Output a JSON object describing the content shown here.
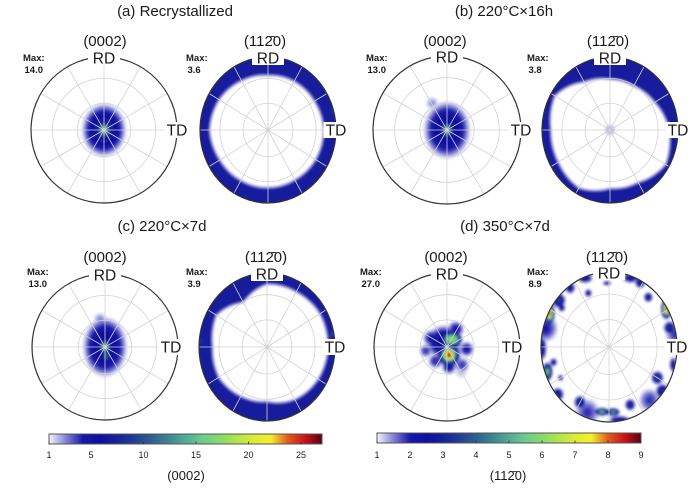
{
  "chart_data": {
    "type": "heatmap",
    "max_label": "Max:",
    "axis_labels": {
      "rd": "RD",
      "td": "TD"
    },
    "grid": {
      "tilt_rings_deg": [
        30,
        60
      ],
      "azimuth_step_deg": 30
    },
    "colormap": [
      "#f5f5fc",
      "#8282d8",
      "#1616a8",
      "#1010a0",
      "#16229a",
      "#223e92",
      "#2f5f8f",
      "#3d8592",
      "#52ab95",
      "#6ccc8c",
      "#86da6c",
      "#b0e44a",
      "#dcec34",
      "#f2ee2e",
      "#e25a1c",
      "#c8141a",
      "#5a0010"
    ],
    "colorbars": [
      {
        "label": "(0002)",
        "range": [
          1,
          27
        ],
        "ticks": [
          1,
          5,
          10,
          15,
          20,
          25
        ]
      },
      {
        "label": "(112̄0)",
        "range": [
          1,
          9
        ],
        "ticks": [
          1,
          2,
          3,
          4,
          5,
          6,
          7,
          8,
          9
        ]
      }
    ],
    "panels": [
      {
        "title": "(a) Recrystallized",
        "pole_figures": [
          {
            "plane": "(0002)",
            "max": "14.0",
            "colorbar": 0,
            "components": [
              {
                "az": 0,
                "tilt": 0,
                "intensity": 7,
                "hw_deg": [
                  31,
                  26
                ],
                "p": 4
              },
              {
                "az": 0,
                "tilt": 0,
                "intensity": 14,
                "hw_deg": [
                  13,
                  11
                ],
                "p": 3
              }
            ]
          },
          {
            "plane": "(112̄0)",
            "max": "3.6",
            "colorbar": 1,
            "ring": {
              "intensity": 2.9,
              "inner_tilt_deg": [
                62,
                64,
                66,
                69,
                68,
                66,
                66,
                67,
                69,
                73,
                70,
                65
              ]
            },
            "components": [
              {
                "az": 75,
                "tilt": 88,
                "intensity": 3.6,
                "hw_deg": [
                  12,
                  6
                ]
              },
              {
                "az": 200,
                "tilt": 86,
                "intensity": 3.3,
                "hw_deg": [
                  8,
                  12
                ]
              }
            ]
          }
        ]
      },
      {
        "title": "(b) 220°C×16h",
        "pole_figures": [
          {
            "plane": "(0002)",
            "max": "13.0",
            "colorbar": 0,
            "components": [
              {
                "az": 0,
                "tilt": 0,
                "intensity": 6.5,
                "hw_deg": [
                  33,
                  27
                ],
                "p": 4
              },
              {
                "az": 0,
                "tilt": 0,
                "intensity": 13,
                "hw_deg": [
                  12,
                  10
                ],
                "p": 3
              },
              {
                "az": 331,
                "tilt": 34,
                "intensity": 2.8,
                "hw_deg": [
                  8,
                  8
                ]
              }
            ]
          },
          {
            "plane": "(112̄0)",
            "max": "3.8",
            "colorbar": 1,
            "ring": {
              "intensity": 2.9,
              "inner_tilt_deg": [
                57,
                57,
                63,
                74,
                82,
                70,
                67,
                79,
                75,
                74,
                81,
                63
              ]
            },
            "components": [
              {
                "az": 0,
                "tilt": 0,
                "intensity": 1.6,
                "hw_deg": [
                  7,
                  7
                ]
              },
              {
                "az": 95,
                "tilt": 88,
                "intensity": 3.8,
                "hw_deg": [
                  12,
                  6
                ]
              },
              {
                "az": 285,
                "tilt": 88,
                "intensity": 3.4,
                "hw_deg": [
                  12,
                  6
                ]
              }
            ]
          }
        ]
      },
      {
        "title": "(c) 220°C×7d",
        "pole_figures": [
          {
            "plane": "(0002)",
            "max": "13.0",
            "colorbar": 0,
            "components": [
              {
                "az": 0,
                "tilt": 0,
                "intensity": 6.5,
                "hw_deg": [
                  35,
                  26
                ],
                "p": 4
              },
              {
                "az": 0,
                "tilt": 0,
                "intensity": 13,
                "hw_deg": [
                  12,
                  9
                ],
                "p": 3
              },
              {
                "az": 170,
                "tilt": 10,
                "intensity": 11,
                "hw_deg": [
                  9,
                  7
                ],
                "p": 3
              },
              {
                "az": 350,
                "tilt": 32,
                "intensity": 3,
                "hw_deg": [
                  8,
                  8
                ]
              }
            ]
          },
          {
            "plane": "(112̄0)",
            "max": "3.9",
            "colorbar": 1,
            "ring": {
              "intensity": 2.9,
              "inner_tilt_deg": [
                72,
                73,
                77,
                77,
                74,
                69,
                61,
                64,
                69,
                67,
                73,
                57
              ]
            },
            "components": [
              {
                "az": 80,
                "tilt": 87,
                "intensity": 3.9,
                "hw_deg": [
                  12,
                  6
                ]
              },
              {
                "az": 275,
                "tilt": 87,
                "intensity": 3.5,
                "hw_deg": [
                  12,
                  6
                ]
              },
              {
                "az": 20,
                "tilt": 86,
                "intensity": 3.3,
                "hw_deg": [
                  6,
                  10
                ]
              }
            ]
          }
        ]
      },
      {
        "title": "(d) 350°C×7d",
        "pole_figures": [
          {
            "plane": "(0002)",
            "max": "27.0",
            "colorbar": 0,
            "components": [
              {
                "az": 330,
                "tilt": 6,
                "intensity": 6,
                "hw_deg": [
                  20,
                  22
                ],
                "p": 4
              },
              {
                "az": 299,
                "tilt": 20,
                "intensity": 5,
                "hw_deg": [
                  10,
                  10
                ],
                "p": 3
              },
              {
                "az": 27,
                "tilt": 22,
                "intensity": 5,
                "hw_deg": [
                  10,
                  10
                ],
                "p": 3
              },
              {
                "az": 96,
                "tilt": 22,
                "intensity": 5,
                "hw_deg": [
                  9,
                  9
                ],
                "p": 3
              },
              {
                "az": 174,
                "tilt": 21,
                "intensity": 5.5,
                "hw_deg": [
                  10,
                  9
                ],
                "p": 3
              },
              {
                "az": 219,
                "tilt": 20,
                "intensity": 4.5,
                "hw_deg": [
                  9,
                  9
                ],
                "p": 3
              },
              {
                "az": 140,
                "tilt": 26,
                "intensity": 4,
                "hw_deg": [
                  9,
                  9
                ],
                "p": 3
              },
              {
                "az": 260,
                "tilt": 24,
                "intensity": 4,
                "hw_deg": [
                  8,
                  8
                ],
                "p": 3
              },
              {
                "az": 150,
                "tilt": 32,
                "intensity": 2.2,
                "hw_deg": [
                  8,
                  8
                ]
              },
              {
                "az": 32,
                "tilt": 10,
                "intensity": 17,
                "hw_deg": [
                  9,
                  13
                ],
                "p": 4
              },
              {
                "az": 166,
                "tilt": 9,
                "intensity": 27,
                "hw_deg": [
                  15,
                  15
                ]
              }
            ]
          },
          {
            "plane": "(112̄0)",
            "max": "8.9",
            "colorbar": 1,
            "components": [
              {
                "az": 339,
                "tilt": 88,
                "intensity": 3.2,
                "hw_deg": [
                  6,
                  10
                ]
              },
              {
                "az": 19,
                "tilt": 87,
                "intensity": 3.2,
                "hw_deg": [
                  6,
                  10
                ]
              },
              {
                "az": 358,
                "tilt": 74,
                "intensity": 2.6,
                "hw_deg": [
                  3,
                  6
                ]
              },
              {
                "az": 337,
                "tilt": 67,
                "intensity": 2.8,
                "hw_deg": [
                  5,
                  5
                ]
              },
              {
                "az": 324,
                "tilt": 87,
                "intensity": 3,
                "hw_deg": [
                  7,
                  7
                ]
              },
              {
                "az": 297,
                "tilt": 88,
                "intensity": 8.9,
                "hw_deg": [
                  13,
                  7
                ]
              },
              {
                "az": 310,
                "tilt": 86,
                "intensity": 3.8,
                "hw_deg": [
                  9,
                  9
                ]
              },
              {
                "az": 307,
                "tilt": 76,
                "intensity": 3,
                "hw_deg": [
                  5,
                  5
                ]
              },
              {
                "az": 269,
                "tilt": 88,
                "intensity": 3.2,
                "hw_deg": [
                  14,
                  6
                ]
              },
              {
                "az": 250,
                "tilt": 86,
                "intensity": 5.6,
                "hw_deg": [
                  11,
                  7
                ]
              },
              {
                "az": 256,
                "tilt": 73,
                "intensity": 3,
                "hw_deg": [
                  5,
                  5
                ]
              },
              {
                "az": 240,
                "tilt": 71,
                "intensity": 2.6,
                "hw_deg": [
                  4,
                  4
                ]
              },
              {
                "az": 230,
                "tilt": 88,
                "intensity": 3.5,
                "hw_deg": [
                  8,
                  8
                ]
              },
              {
                "az": 210,
                "tilt": 74,
                "intensity": 3.5,
                "hw_deg": [
                  8,
                  8
                ]
              },
              {
                "az": 187,
                "tilt": 76,
                "intensity": 5.5,
                "hw_deg": [
                  5,
                  10
                ]
              },
              {
                "az": 176,
                "tilt": 76,
                "intensity": 5.2,
                "hw_deg": [
                  5,
                  9
                ]
              },
              {
                "az": 158,
                "tilt": 72,
                "intensity": 3.5,
                "hw_deg": [
                  7,
                  7
                ]
              },
              {
                "az": 171,
                "tilt": 88,
                "intensity": 3.2,
                "hw_deg": [
                  5,
                  14
                ]
              },
              {
                "az": 120,
                "tilt": 71,
                "intensity": 4,
                "hw_deg": [
                  8,
                  8
                ]
              },
              {
                "az": 127,
                "tilt": 88,
                "intensity": 3.5,
                "hw_deg": [
                  9,
                  9
                ]
              },
              {
                "az": 104,
                "tilt": 87,
                "intensity": 3,
                "hw_deg": [
                  9,
                  5
                ]
              },
              {
                "az": 59,
                "tilt": 88,
                "intensity": 8.9,
                "hw_deg": [
                  12,
                  7
                ]
              },
              {
                "az": 74,
                "tilt": 82,
                "intensity": 3.5,
                "hw_deg": [
                  8,
                  8
                ]
              },
              {
                "az": 41,
                "tilt": 77,
                "intensity": 3.5,
                "hw_deg": [
                  6,
                  6
                ]
              },
              {
                "az": 28,
                "tilt": 87,
                "intensity": 3.2,
                "hw_deg": [
                  7,
                  7
                ]
              },
              {
                "az": 80,
                "tilt": 88,
                "intensity": 2,
                "hw_deg": [
                  12,
                  12
                ]
              },
              {
                "az": 285,
                "tilt": 86,
                "intensity": 2.2,
                "hw_deg": [
                  16,
                  16
                ]
              },
              {
                "az": 200,
                "tilt": 82,
                "intensity": 2,
                "hw_deg": [
                  16,
                  16
                ]
              },
              {
                "az": 140,
                "tilt": 82,
                "intensity": 2,
                "hw_deg": [
                  14,
                  14
                ]
              }
            ]
          }
        ]
      }
    ]
  }
}
